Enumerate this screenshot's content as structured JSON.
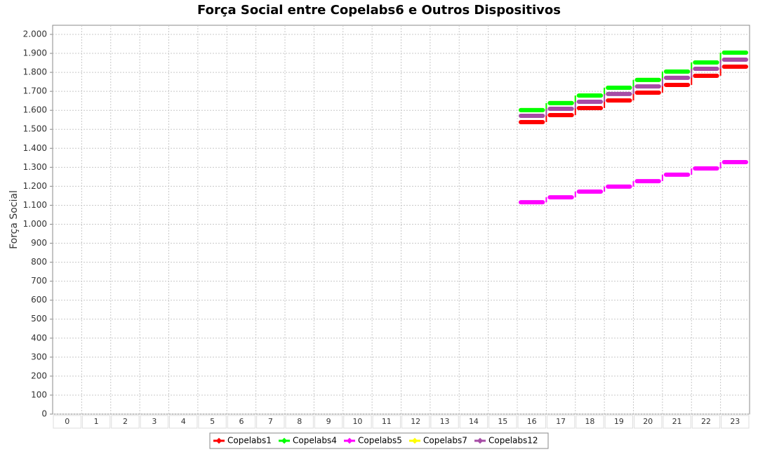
{
  "chart_data": {
    "type": "step",
    "title": "Força Social entre Copelabs6 e Outros Dispositivos",
    "y_label": "Força Social",
    "categories": [
      "0",
      "1",
      "2",
      "3",
      "4",
      "5",
      "6",
      "7",
      "8",
      "9",
      "10",
      "11",
      "12",
      "13",
      "14",
      "15",
      "16",
      "17",
      "18",
      "19",
      "20",
      "21",
      "22",
      "23"
    ],
    "ylim": [
      0,
      2048
    ],
    "yticks": [
      0,
      100,
      200,
      300,
      400,
      500,
      600,
      700,
      800,
      900,
      {
        "value": 1000,
        "label": "1.000"
      },
      {
        "value": 1100,
        "label": "1.100"
      },
      {
        "value": 1200,
        "label": "1.200"
      },
      {
        "value": 1300,
        "label": "1.300"
      },
      {
        "value": 1400,
        "label": "1.400"
      },
      {
        "value": 1500,
        "label": "1.500"
      },
      {
        "value": 1600,
        "label": "1.600"
      },
      {
        "value": 1700,
        "label": "1.700"
      },
      {
        "value": 1800,
        "label": "1.800"
      },
      {
        "value": 1900,
        "label": "1.900"
      },
      {
        "value": 2000,
        "label": "2.000"
      }
    ],
    "grid": true,
    "legend": "bottom",
    "series": [
      {
        "name": "Copelabs1",
        "color": "#ff0000",
        "values": [
          null,
          null,
          null,
          null,
          null,
          null,
          null,
          null,
          null,
          null,
          null,
          null,
          null,
          null,
          null,
          null,
          1538,
          1575,
          1612,
          1652,
          1693,
          1734,
          1782,
          1830
        ]
      },
      {
        "name": "Copelabs4",
        "color": "#00ff00",
        "values": [
          null,
          null,
          null,
          null,
          null,
          null,
          null,
          null,
          null,
          null,
          null,
          null,
          null,
          null,
          null,
          null,
          1601,
          1638,
          1678,
          1719,
          1760,
          1804,
          1852,
          1904
        ]
      },
      {
        "name": "Copelabs5",
        "color": "#ff00ff",
        "values": [
          null,
          null,
          null,
          null,
          null,
          null,
          null,
          null,
          null,
          null,
          null,
          null,
          null,
          null,
          null,
          null,
          1116,
          1142,
          1172,
          1198,
          1227,
          1261,
          1294,
          1327
        ]
      },
      {
        "name": "Copelabs7",
        "color": "#ffff00",
        "values": [
          null,
          null,
          null,
          null,
          null,
          null,
          null,
          null,
          null,
          null,
          null,
          null,
          null,
          null,
          null,
          null,
          1601,
          1638,
          1678,
          1719,
          1760,
          1804,
          1852,
          1904
        ]
      },
      {
        "name": "Copelabs12",
        "color": "#a64ca6",
        "values": [
          null,
          null,
          null,
          null,
          null,
          null,
          null,
          null,
          null,
          null,
          null,
          null,
          null,
          null,
          null,
          null,
          1571,
          1608,
          1645,
          1686,
          1726,
          1771,
          1819,
          1867
        ]
      }
    ]
  }
}
